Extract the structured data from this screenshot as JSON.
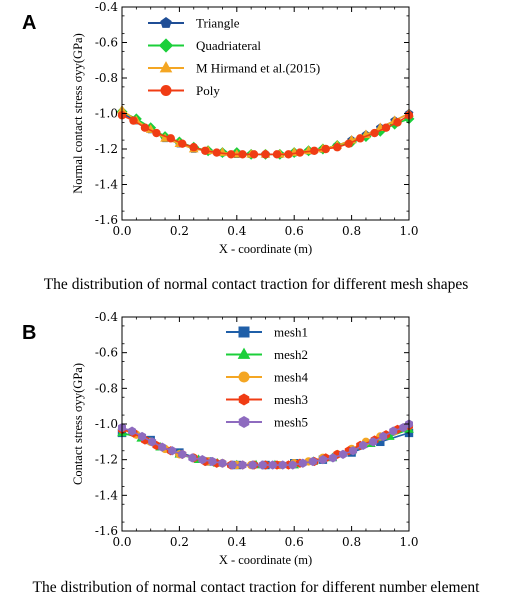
{
  "panels": [
    {
      "letter": "A",
      "caption": "The distribution of normal contact traction for different mesh shapes"
    },
    {
      "letter": "B",
      "caption": "The distribution of normal contact traction for different number element"
    }
  ],
  "chart_data": [
    {
      "type": "line",
      "xlabel": "X - coordinate (m)",
      "ylabel": "Normal contact stress σyy(GPa)",
      "xlim": [
        0.0,
        1.0
      ],
      "ylim": [
        -1.6,
        -0.4
      ],
      "xticks": [
        "0.0",
        "0.2",
        "0.4",
        "0.6",
        "0.8",
        "1.0"
      ],
      "yticks": [
        "-0.4",
        "-0.6",
        "-0.8",
        "-1.0",
        "-1.2",
        "-1.4",
        "-1.6"
      ],
      "legend_position": "top-left",
      "grid": false,
      "series": [
        {
          "name": "Triangle",
          "color": "#1f4e96",
          "marker": "pentagon",
          "x": [
            0.0,
            0.05,
            0.1,
            0.15,
            0.2,
            0.25,
            0.3,
            0.35,
            0.4,
            0.45,
            0.5,
            0.55,
            0.6,
            0.65,
            0.7,
            0.75,
            0.8,
            0.85,
            0.9,
            0.95,
            1.0
          ],
          "values": [
            -1.0,
            -1.04,
            -1.09,
            -1.14,
            -1.17,
            -1.2,
            -1.21,
            -1.22,
            -1.23,
            -1.23,
            -1.23,
            -1.23,
            -1.22,
            -1.21,
            -1.2,
            -1.18,
            -1.15,
            -1.12,
            -1.08,
            -1.04,
            -1.0
          ]
        },
        {
          "name": "Quadriateral",
          "color": "#1bcf3a",
          "marker": "diamond",
          "x": [
            0.0,
            0.05,
            0.1,
            0.15,
            0.2,
            0.25,
            0.3,
            0.35,
            0.4,
            0.45,
            0.5,
            0.55,
            0.6,
            0.65,
            0.7,
            0.75,
            0.8,
            0.85,
            0.9,
            0.95,
            1.0
          ],
          "values": [
            -0.99,
            -1.03,
            -1.08,
            -1.13,
            -1.16,
            -1.19,
            -1.21,
            -1.22,
            -1.22,
            -1.23,
            -1.23,
            -1.23,
            -1.22,
            -1.21,
            -1.2,
            -1.18,
            -1.16,
            -1.13,
            -1.1,
            -1.06,
            -1.03
          ]
        },
        {
          "name": "M Hirmand et al.(2015)",
          "color": "#f4a623",
          "marker": "triangle",
          "x": [
            0.0,
            0.05,
            0.1,
            0.15,
            0.2,
            0.25,
            0.3,
            0.35,
            0.4,
            0.45,
            0.5,
            0.55,
            0.6,
            0.65,
            0.7,
            0.75,
            0.8,
            0.85,
            0.9,
            0.95,
            1.0
          ],
          "values": [
            -0.98,
            -1.04,
            -1.09,
            -1.14,
            -1.17,
            -1.2,
            -1.21,
            -1.22,
            -1.23,
            -1.23,
            -1.23,
            -1.23,
            -1.22,
            -1.21,
            -1.2,
            -1.18,
            -1.15,
            -1.12,
            -1.08,
            -1.04,
            -1.0
          ]
        },
        {
          "name": "Poly",
          "color": "#f03c14",
          "marker": "circle",
          "x": [
            0.0,
            0.04,
            0.08,
            0.12,
            0.17,
            0.21,
            0.25,
            0.29,
            0.33,
            0.38,
            0.42,
            0.46,
            0.5,
            0.54,
            0.58,
            0.62,
            0.67,
            0.71,
            0.75,
            0.79,
            0.83,
            0.88,
            0.92,
            0.96,
            1.0
          ],
          "values": [
            -1.01,
            -1.04,
            -1.08,
            -1.11,
            -1.14,
            -1.17,
            -1.19,
            -1.21,
            -1.22,
            -1.23,
            -1.23,
            -1.23,
            -1.23,
            -1.23,
            -1.23,
            -1.22,
            -1.21,
            -1.2,
            -1.19,
            -1.17,
            -1.14,
            -1.11,
            -1.08,
            -1.05,
            -1.01
          ]
        }
      ]
    },
    {
      "type": "line",
      "xlabel": "X - coordinate (m)",
      "ylabel": "Contact stress σyy(GPa)",
      "xlim": [
        0.0,
        1.0
      ],
      "ylim": [
        -1.6,
        -0.4
      ],
      "xticks": [
        "0.0",
        "0.2",
        "0.4",
        "0.6",
        "0.8",
        "1.0"
      ],
      "yticks": [
        "-0.4",
        "-0.6",
        "-0.8",
        "-1.0",
        "-1.2",
        "-1.4",
        "-1.6"
      ],
      "legend_position": "top-center",
      "grid": false,
      "series": [
        {
          "name": "mesh1",
          "color": "#1f5fa8",
          "marker": "square",
          "x": [
            0.0,
            0.1,
            0.2,
            0.3,
            0.4,
            0.5,
            0.6,
            0.7,
            0.8,
            0.9,
            1.0
          ],
          "values": [
            -1.05,
            -1.09,
            -1.16,
            -1.21,
            -1.23,
            -1.23,
            -1.22,
            -1.2,
            -1.16,
            -1.1,
            -1.05
          ]
        },
        {
          "name": "mesh2",
          "color": "#1bcf3a",
          "marker": "triangle",
          "x": [
            0.0,
            0.067,
            0.133,
            0.2,
            0.267,
            0.333,
            0.4,
            0.467,
            0.533,
            0.6,
            0.667,
            0.733,
            0.8,
            0.867,
            0.933,
            1.0
          ],
          "values": [
            -1.05,
            -1.08,
            -1.13,
            -1.17,
            -1.2,
            -1.22,
            -1.23,
            -1.23,
            -1.23,
            -1.23,
            -1.21,
            -1.19,
            -1.15,
            -1.11,
            -1.07,
            -1.03
          ]
        },
        {
          "name": "mesh4",
          "color": "#f4a623",
          "marker": "circle",
          "x": [
            0.0,
            0.05,
            0.1,
            0.15,
            0.2,
            0.25,
            0.3,
            0.35,
            0.4,
            0.45,
            0.5,
            0.55,
            0.6,
            0.65,
            0.7,
            0.75,
            0.8,
            0.85,
            0.9,
            0.95,
            1.0
          ],
          "values": [
            -1.03,
            -1.06,
            -1.1,
            -1.14,
            -1.17,
            -1.19,
            -1.21,
            -1.22,
            -1.23,
            -1.23,
            -1.23,
            -1.23,
            -1.22,
            -1.21,
            -1.19,
            -1.17,
            -1.14,
            -1.1,
            -1.07,
            -1.04,
            -1.01
          ]
        },
        {
          "name": "mesh3",
          "color": "#f03c14",
          "marker": "hexagon",
          "x": [
            0.0,
            0.04,
            0.08,
            0.12,
            0.17,
            0.21,
            0.25,
            0.29,
            0.33,
            0.38,
            0.42,
            0.46,
            0.5,
            0.54,
            0.58,
            0.62,
            0.67,
            0.71,
            0.75,
            0.79,
            0.83,
            0.88,
            0.92,
            0.96,
            1.0
          ],
          "values": [
            -1.03,
            -1.05,
            -1.09,
            -1.12,
            -1.15,
            -1.17,
            -1.19,
            -1.21,
            -1.22,
            -1.23,
            -1.23,
            -1.23,
            -1.23,
            -1.23,
            -1.23,
            -1.22,
            -1.21,
            -1.19,
            -1.17,
            -1.15,
            -1.12,
            -1.09,
            -1.06,
            -1.03,
            -1.01
          ]
        },
        {
          "name": "mesh5",
          "color": "#8e6bbf",
          "marker": "hexagon",
          "x": [
            0.0,
            0.035,
            0.07,
            0.105,
            0.14,
            0.175,
            0.21,
            0.245,
            0.28,
            0.315,
            0.35,
            0.385,
            0.42,
            0.455,
            0.49,
            0.525,
            0.56,
            0.595,
            0.63,
            0.665,
            0.7,
            0.735,
            0.77,
            0.805,
            0.84,
            0.875,
            0.91,
            0.945,
            0.98,
            1.0
          ],
          "values": [
            -1.02,
            -1.04,
            -1.07,
            -1.1,
            -1.13,
            -1.15,
            -1.17,
            -1.19,
            -1.2,
            -1.21,
            -1.22,
            -1.23,
            -1.23,
            -1.23,
            -1.23,
            -1.23,
            -1.23,
            -1.23,
            -1.22,
            -1.21,
            -1.2,
            -1.19,
            -1.17,
            -1.15,
            -1.12,
            -1.1,
            -1.07,
            -1.04,
            -1.02,
            -1.0
          ]
        }
      ]
    }
  ]
}
